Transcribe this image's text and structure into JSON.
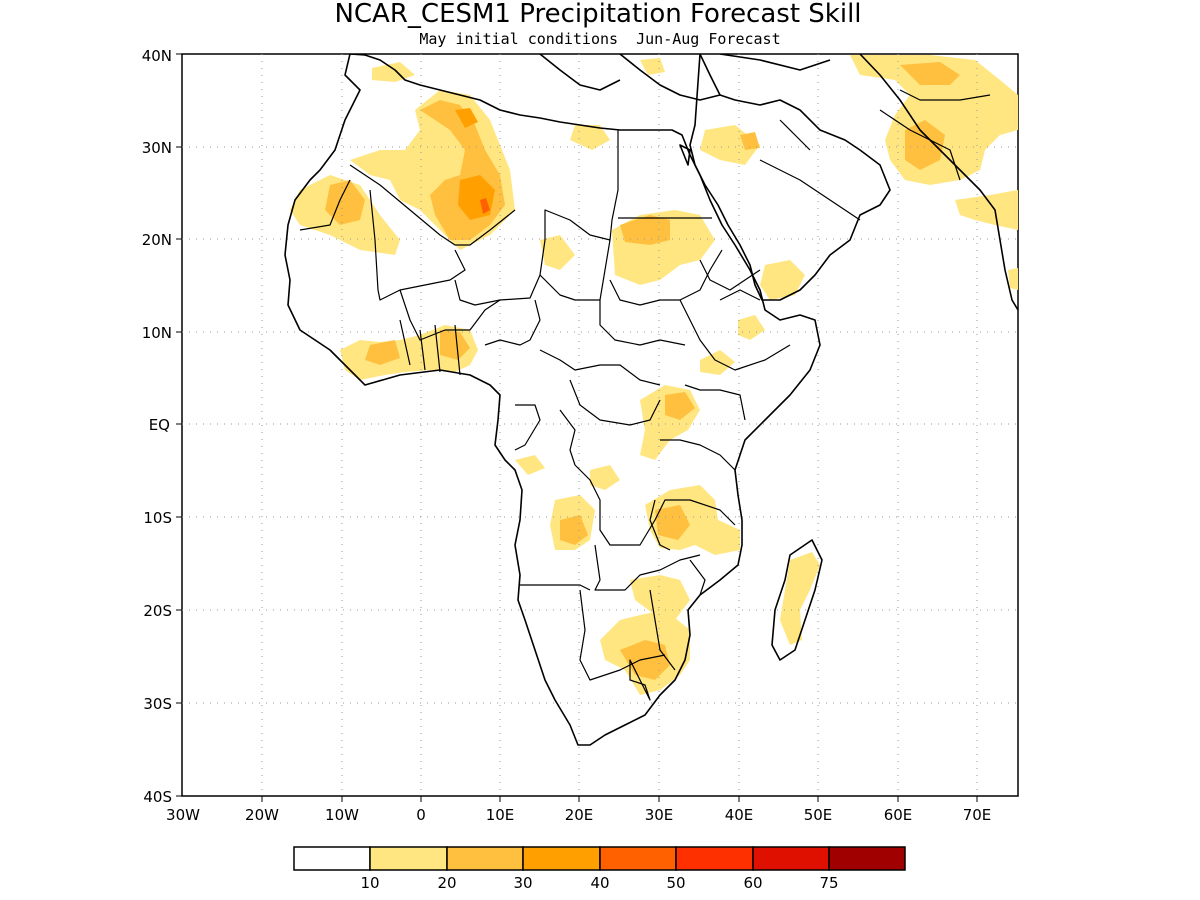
{
  "title": "NCAR_CESM1 Precipitation Forecast Skill",
  "subtitle": "May initial conditions  Jun-Aug Forecast",
  "lat_labels": [
    "40N",
    "30N",
    "20N",
    "10N",
    "EQ",
    "10S",
    "20S",
    "30S",
    "40S"
  ],
  "lon_labels": [
    "30W",
    "20W",
    "10W",
    "0",
    "10E",
    "20E",
    "30E",
    "40E",
    "50E",
    "60E",
    "70E"
  ],
  "legend": {
    "colors": [
      "#ffffff",
      "#ffe680",
      "#ffc040",
      "#ffa000",
      "#ff6000",
      "#ff3000",
      "#e01000",
      "#a00000"
    ],
    "labels": [
      "10",
      "20",
      "30",
      "40",
      "50",
      "60",
      "75"
    ]
  },
  "colors": {
    "level1": "#ffe680",
    "level2": "#ffc040",
    "level3": "#ffa000",
    "level4": "#ff6000",
    "coast": "#000000",
    "grid": "#999999"
  }
}
